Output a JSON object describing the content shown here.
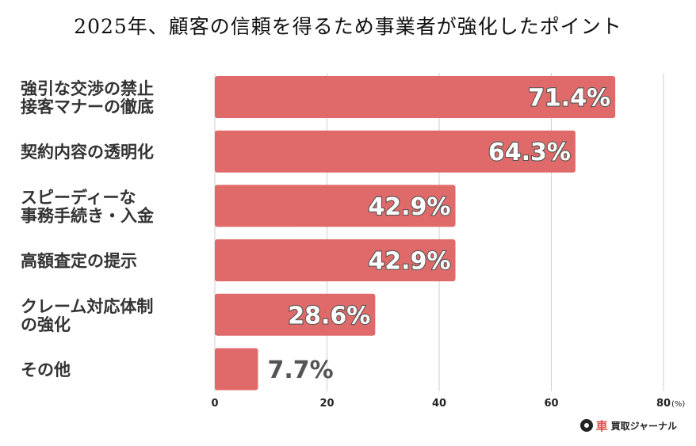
{
  "chart_data": {
    "type": "bar",
    "orientation": "horizontal",
    "title": "2025年、顧客の信頼を得るため事業者が強化したポイント",
    "categories": [
      [
        "強引な交渉の禁止",
        "接客マナーの徹底"
      ],
      [
        "契約内容の透明化"
      ],
      [
        "スピーディーな",
        "事務手続き・入金"
      ],
      [
        "高額査定の提示"
      ],
      [
        "クレーム対応体制",
        "の強化"
      ],
      [
        "その他"
      ]
    ],
    "values": [
      71.4,
      64.3,
      42.9,
      42.9,
      28.6,
      7.7
    ],
    "value_labels": [
      "71.4%",
      "64.3%",
      "42.9%",
      "42.9%",
      "28.6%",
      "7.7%"
    ],
    "xlim": [
      0,
      80
    ],
    "xticks": [
      0,
      20,
      40,
      60,
      80
    ],
    "xticklabels": [
      "0",
      "20",
      "40",
      "60",
      "80"
    ],
    "unit_label": "(%)",
    "grid": true,
    "bar_color": "#e06a69"
  },
  "watermark": {
    "brand_red": "車",
    "brand_black": "買取ジャーナル"
  }
}
